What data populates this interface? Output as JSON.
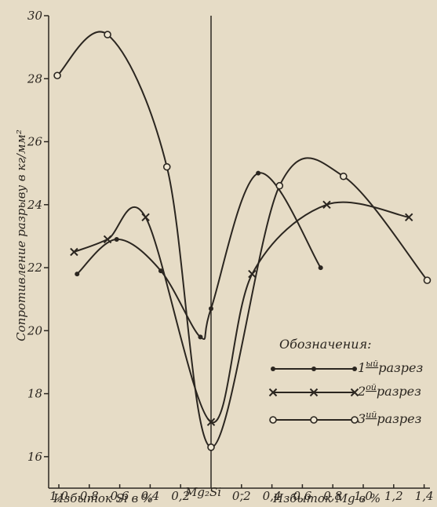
{
  "chart_data": {
    "type": "line",
    "ylabel": "Сопротивление разрыву в кг/мм²",
    "ylim": [
      15,
      30
    ],
    "yticks": [
      "30",
      "28",
      "26",
      "24",
      "22",
      "20",
      "18",
      "16"
    ],
    "ytick_values": [
      30,
      28,
      26,
      24,
      22,
      20,
      18,
      16
    ],
    "xlim": [
      -1.05,
      1.45
    ],
    "xtick_labels": [
      "1,0",
      "0,8",
      "0,6",
      "0,4",
      "0,2",
      "0,2",
      "0,4",
      "0,6",
      "0,8",
      "1,0",
      "1,2",
      "1,4"
    ],
    "xtick_values": [
      -1.0,
      -0.8,
      -0.6,
      -0.4,
      -0.2,
      0.2,
      0.4,
      0.6,
      0.8,
      1.0,
      1.2,
      1.4
    ],
    "xlabel_left": "Избыток Si в %",
    "xlabel_center": "Mg₂Si",
    "xlabel_sep": "-",
    "xlabel_right": "Избыток Mg в %",
    "legend_title": "Обозначения:",
    "series": [
      {
        "name": "1ый разрез",
        "label_main": "1",
        "label_sup": "ый",
        "label_rest": "разрез",
        "marker": "dot",
        "points": [
          [
            -0.88,
            21.8
          ],
          [
            -0.62,
            22.9
          ],
          [
            -0.33,
            21.9
          ],
          [
            -0.07,
            19.8
          ],
          [
            0.0,
            20.7
          ],
          [
            0.31,
            25.0
          ],
          [
            0.72,
            22.0
          ]
        ]
      },
      {
        "name": "2ой разрез",
        "label_main": "2",
        "label_sup": "ой",
        "label_rest": "разрез",
        "marker": "cross",
        "points": [
          [
            -0.9,
            22.5
          ],
          [
            -0.68,
            22.9
          ],
          [
            -0.43,
            23.6
          ],
          [
            0.0,
            17.1
          ],
          [
            0.27,
            21.8
          ],
          [
            0.76,
            24.0
          ],
          [
            1.3,
            23.6
          ]
        ]
      },
      {
        "name": "3ий разрез",
        "label_main": "3",
        "label_sup": "ий",
        "label_rest": "разрез",
        "marker": "circle",
        "points": [
          [
            -1.01,
            28.1
          ],
          [
            -0.68,
            29.4
          ],
          [
            -0.29,
            25.2
          ],
          [
            0.0,
            16.3
          ],
          [
            0.45,
            24.6
          ],
          [
            0.87,
            24.9
          ],
          [
            1.42,
            21.6
          ]
        ]
      }
    ]
  }
}
